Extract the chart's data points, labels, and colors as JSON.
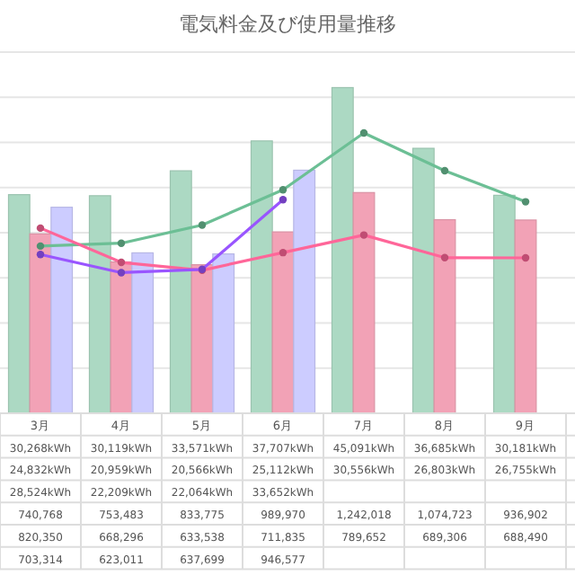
{
  "chart_data": {
    "type": "bar",
    "title": "電気料金及び使用量推移",
    "categories": [
      "3月",
      "4月",
      "5月",
      "6月",
      "7月",
      "8月",
      "9月"
    ],
    "ylim": [
      0,
      50000
    ],
    "yticks": [
      {
        "value": 0,
        "label": null
      },
      {
        "value": 6250,
        "label": null
      },
      {
        "value": 12500,
        "label": null
      },
      {
        "value": 18750,
        "label": null
      },
      {
        "value": 25000,
        "label": null
      },
      {
        "value": 31250,
        "label": null
      },
      {
        "value": 37500,
        "label": null
      },
      {
        "value": 43750,
        "label": null
      },
      {
        "value": 50000,
        "label": null
      }
    ],
    "y2lim": [
      0,
      1600000
    ],
    "grid": "y",
    "marker": "circle",
    "line_style": "solid",
    "series": [
      {
        "color": "#acd9c3",
        "values": [
          30268,
          30119,
          33571,
          37707,
          45091,
          36685,
          30181
        ],
        "value_labels": [
          "30,268kWh",
          "30,119kWh",
          "33,571kWh",
          "37,707kWh",
          "45,091kWh",
          "36,685kWh",
          "30,181kWh"
        ]
      },
      {
        "color": "#f2a2b6",
        "values": [
          24832,
          20959,
          20566,
          25112,
          30556,
          26803,
          26755
        ],
        "value_labels": [
          "24,832kWh",
          "20,959kWh",
          "20,566kWh",
          "25,112kWh",
          "30,556kWh",
          "26,803kWh",
          "26,755kWh"
        ]
      },
      {
        "color": "#ccccff",
        "values": [
          28524,
          22209,
          22064,
          33652,
          null,
          null,
          null
        ],
        "value_labels": [
          "28,524kWh",
          "22,209kWh",
          "22,064kWh",
          "33,652kWh",
          null,
          null,
          null
        ]
      },
      {
        "type": "line",
        "axis": "y2",
        "color": "#6cbf95",
        "values": [
          740768,
          753483,
          833775,
          989970,
          1242018,
          1074723,
          936902
        ],
        "value_labels": [
          "740,768",
          "753,483",
          "833,775",
          "989,970",
          "1,242,018",
          "1,074,723",
          "936,902"
        ]
      },
      {
        "type": "line",
        "axis": "y2",
        "color": "#ff6699",
        "values": [
          820350,
          668296,
          633538,
          711835,
          789652,
          689306,
          688490
        ],
        "value_labels": [
          "820,350",
          "668,296",
          "633,538",
          "711,835",
          "789,652",
          "689,306",
          "688,490"
        ]
      },
      {
        "type": "line",
        "axis": "y2",
        "color": "#9955ff",
        "values": [
          703314,
          623011,
          637699,
          946577,
          null,
          null,
          null
        ],
        "value_labels": [
          "703,314",
          "623,011",
          "637,699",
          "946,577",
          null,
          null,
          null
        ]
      }
    ]
  }
}
